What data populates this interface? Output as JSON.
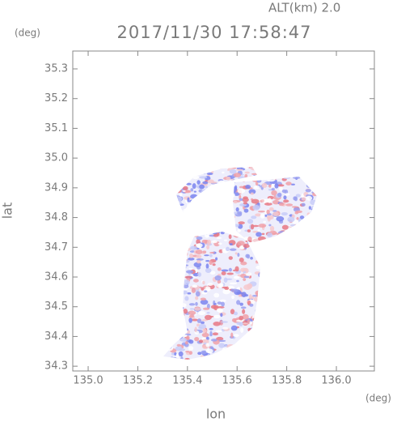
{
  "chart_data": {
    "type": "map",
    "title": "2017/11/30 17:58:47",
    "subtitle": "ALT(km) 2.0",
    "y_unit": "(deg)",
    "x_unit": "(deg)",
    "xlabel": "lon",
    "ylabel": "lat",
    "xlim": [
      134.938,
      136.153
    ],
    "ylim": [
      34.284,
      35.36
    ],
    "xticks": [
      {
        "value": 135.0,
        "label": "135.0"
      },
      135.2,
      135.4,
      135.6,
      135.8,
      {
        "value": 136.0,
        "label": "136.0"
      }
    ],
    "yticks": [
      34.3,
      34.4,
      34.5,
      34.6,
      34.7,
      34.8,
      34.9,
      {
        "value": 35.0,
        "label": "35.0"
      },
      35.1,
      35.2,
      35.3
    ]
  }
}
